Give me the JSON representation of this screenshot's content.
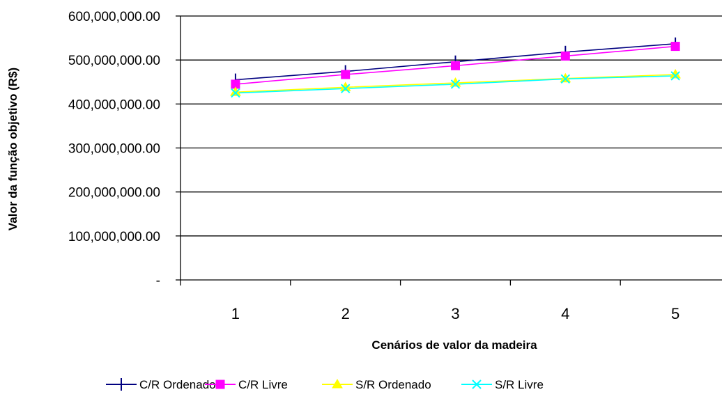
{
  "chart_data": {
    "type": "line",
    "title": "",
    "xlabel": "Cenários de valor da madeira",
    "ylabel": "Valor da função objetivo (R$)",
    "categories": [
      "1",
      "2",
      "3",
      "4",
      "5"
    ],
    "ylim": [
      0,
      600000000
    ],
    "yticks": [
      0,
      100000000,
      200000000,
      300000000,
      400000000,
      500000000,
      600000000
    ],
    "ytick_labels": [
      "-",
      "100,000,000.00",
      "200,000,000.00",
      "300,000,000.00",
      "400,000,000.00",
      "500,000,000.00",
      "600,000,000.00"
    ],
    "grid": "horizontal",
    "legend_position": "bottom",
    "series": [
      {
        "name": "C/R Ordenado",
        "marker": "plus",
        "color": "#000080",
        "values": [
          455000000,
          474000000,
          496000000,
          518000000,
          537000000
        ]
      },
      {
        "name": "C/R Livre",
        "marker": "square",
        "color": "#ff00ff",
        "values": [
          445000000,
          467000000,
          487000000,
          509000000,
          531000000
        ]
      },
      {
        "name": "S/R Ordenado",
        "marker": "triangle",
        "color": "#ffff00",
        "values": [
          427000000,
          438000000,
          448000000,
          458000000,
          467000000
        ]
      },
      {
        "name": "S/R Livre",
        "marker": "x",
        "color": "#00ffff",
        "values": [
          425000000,
          435000000,
          445000000,
          457000000,
          464000000
        ]
      }
    ]
  }
}
